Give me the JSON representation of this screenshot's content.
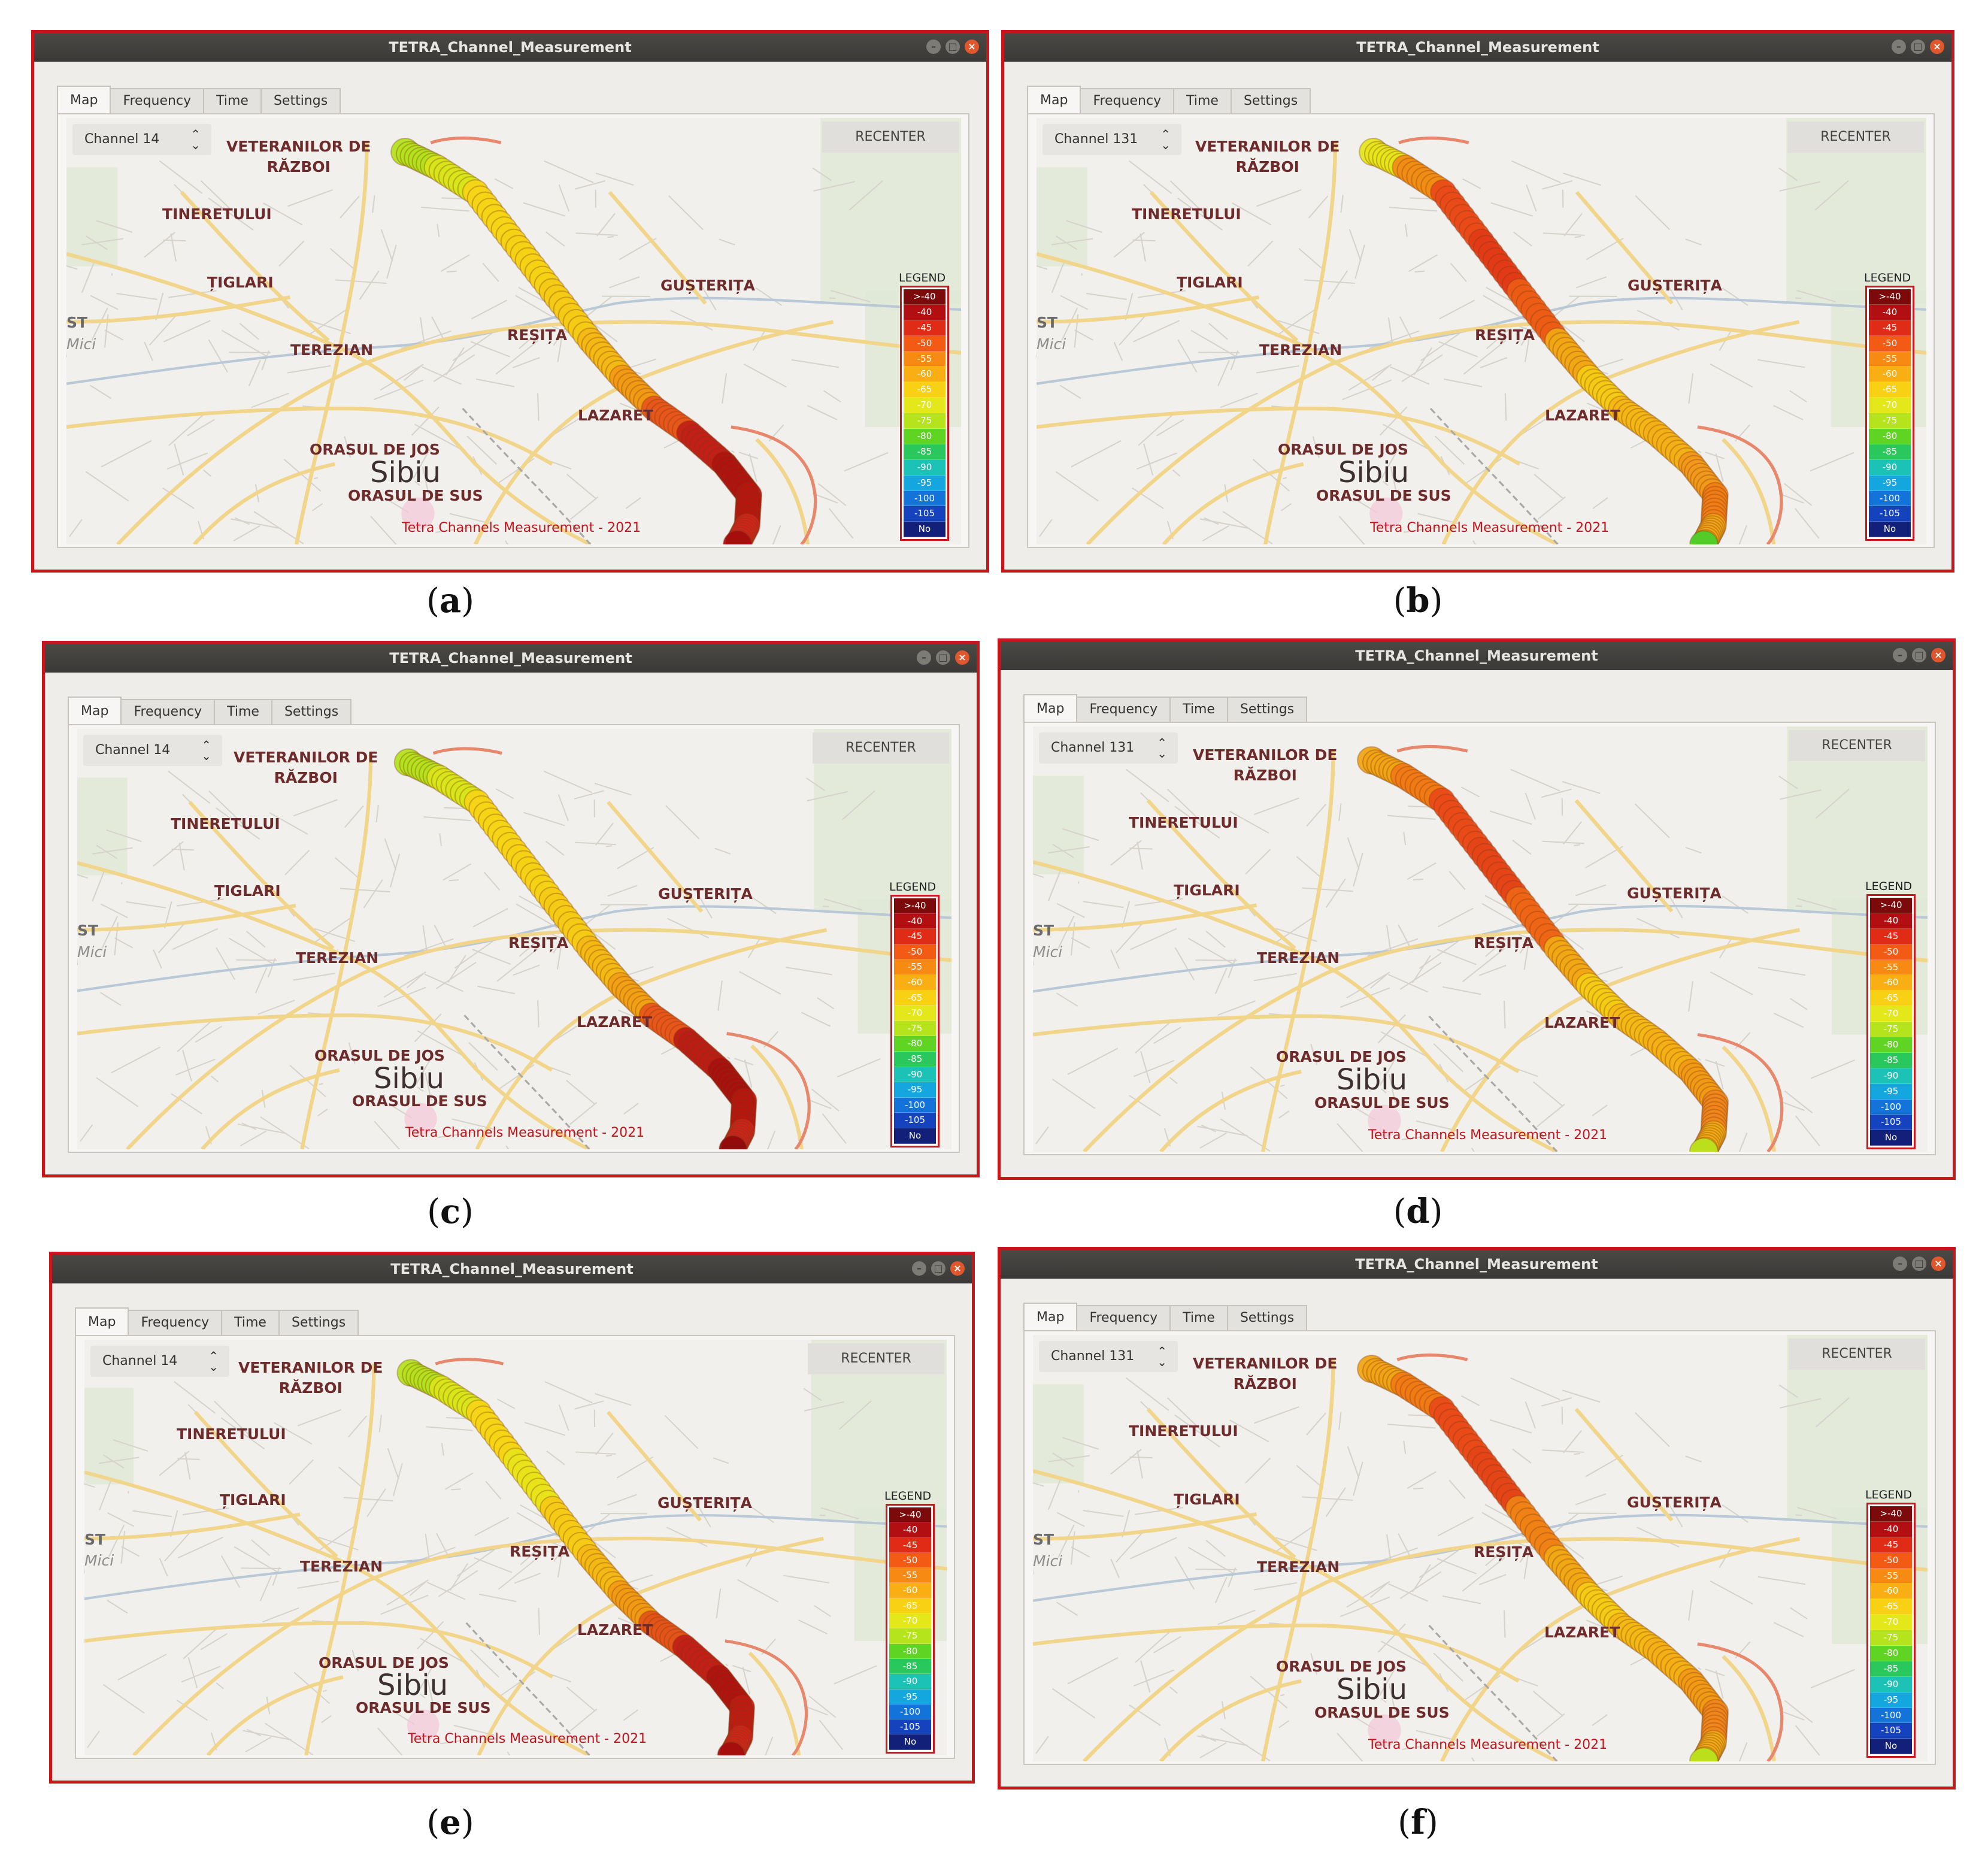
{
  "window_title": "TETRA_Channel_Measurement",
  "tabs": [
    "Map",
    "Frequency",
    "Time",
    "Settings"
  ],
  "recenter_label": "RECENTER",
  "legend_title": "LEGEND",
  "legend_rows": [
    {
      "label": ">-40",
      "color": "#7c0a0a"
    },
    {
      "label": "-40",
      "color": "#b20f12"
    },
    {
      "label": "-45",
      "color": "#e02b16"
    },
    {
      "label": "-50",
      "color": "#f35a13"
    },
    {
      "label": "-55",
      "color": "#f78a12"
    },
    {
      "label": "-60",
      "color": "#f9ae14"
    },
    {
      "label": "-65",
      "color": "#f8d014"
    },
    {
      "label": "-70",
      "color": "#e4e81a"
    },
    {
      "label": "-75",
      "color": "#b6e41c"
    },
    {
      "label": "-80",
      "color": "#5fd423"
    },
    {
      "label": "-85",
      "color": "#2ac85c"
    },
    {
      "label": "-90",
      "color": "#1cc2b5"
    },
    {
      "label": "-95",
      "color": "#14a6df"
    },
    {
      "label": "-100",
      "color": "#1473d9"
    },
    {
      "label": "-105",
      "color": "#1443bd"
    },
    {
      "label": "No",
      "color": "#12207a"
    }
  ],
  "places": {
    "veteranilor": [
      "VETERANILOR DE",
      "RĂZBOI"
    ],
    "tineretului": "TINERETULUI",
    "tiglari": "ȚIGLARI",
    "gusterita": "GUȘTERIȚA",
    "resita": "REȘIȚA",
    "terezian": "TEREZIAN",
    "lazaret": "LAZARET",
    "orasul_jos": "ORASUL DE JOS",
    "sibiu": "Sibiu",
    "orasul_sus": "ORASUL DE SUS",
    "edge_a": "ST",
    "edge_b": "Mici"
  },
  "credit": "Tetra Channels Measurement - 2021",
  "panels": [
    {
      "caption": "a",
      "channel": "Channel 14",
      "track": [
        "#b4e21c",
        "#d8e61a",
        "#f6d515",
        "#f7d215",
        "#f6cb15",
        "#f5b915",
        "#f39a14",
        "#e8561a",
        "#c21f16",
        "#b0120f",
        "#b8150f",
        "#d3251a",
        "#a30d0c"
      ]
    },
    {
      "caption": "b",
      "channel": "Channel 131",
      "track": [
        "#e6e61a",
        "#f38d14",
        "#ea4a18",
        "#e23a16",
        "#ec5c15",
        "#f3a714",
        "#f6cb15",
        "#f5b715",
        "#f5b115",
        "#f3981a",
        "#f27d14",
        "#f5a614",
        "#46cf2a"
      ]
    },
    {
      "caption": "c",
      "channel": "Channel 14",
      "track": [
        "#b4e21c",
        "#d8e61a",
        "#f6d515",
        "#f7d215",
        "#f6cb15",
        "#f5b915",
        "#f2a014",
        "#e8561a",
        "#bb1c14",
        "#a8100e",
        "#b8150f",
        "#d0241a",
        "#8e0a0a"
      ]
    },
    {
      "caption": "d",
      "channel": "Channel 131",
      "track": [
        "#f2a414",
        "#f27a14",
        "#ea4a18",
        "#e54417",
        "#ee6515",
        "#f3a814",
        "#f6cc15",
        "#f5b915",
        "#f5b015",
        "#f39a15",
        "#f2861a",
        "#f5ad14",
        "#b8e41c"
      ]
    },
    {
      "caption": "e",
      "channel": "Channel 14",
      "track": [
        "#b4e21c",
        "#d8e61a",
        "#f6d515",
        "#e9e41a",
        "#f6cb15",
        "#f5b915",
        "#f39a14",
        "#e45418",
        "#c21f16",
        "#b0120f",
        "#c01b12",
        "#d3251a",
        "#a30d0c"
      ]
    },
    {
      "caption": "f",
      "channel": "Channel 131",
      "track": [
        "#f2a414",
        "#f27a14",
        "#ea4a18",
        "#e54417",
        "#f08215",
        "#f3a814",
        "#f6cc15",
        "#f5b915",
        "#f5b015",
        "#f39a15",
        "#f2861a",
        "#f5ad14",
        "#b8e41c"
      ]
    }
  ]
}
